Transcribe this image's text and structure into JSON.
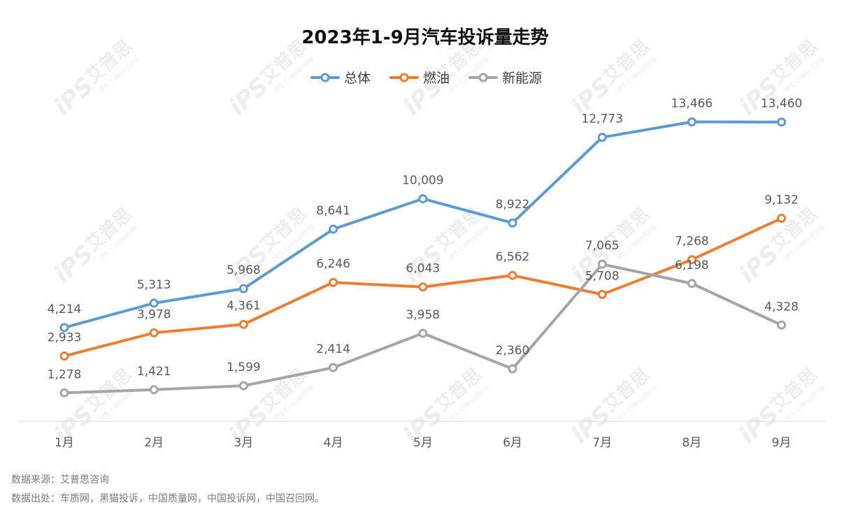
{
  "chart_data": {
    "type": "line",
    "title": "2023年1-9月汽车投诉量走势",
    "categories": [
      "1月",
      "2月",
      "3月",
      "4月",
      "5月",
      "6月",
      "7月",
      "8月",
      "9月"
    ],
    "series": [
      {
        "name": "总体",
        "color": "#5b9bd5",
        "values": [
          4214,
          5313,
          5968,
          8641,
          10009,
          8922,
          12773,
          13466,
          13460
        ],
        "labels": [
          "4,214",
          "5,313",
          "5,968",
          "8,641",
          "10,009",
          "8,922",
          "12,773",
          "13,466",
          "13,460"
        ]
      },
      {
        "name": "燃油",
        "color": "#ed7d31",
        "values": [
          2933,
          3978,
          4361,
          6246,
          6043,
          6562,
          5708,
          7268,
          9132
        ],
        "labels": [
          "2,933",
          "3,978",
          "4,361",
          "6,246",
          "6,043",
          "6,562",
          "5,708",
          "7,268",
          "9,132"
        ]
      },
      {
        "name": "新能源",
        "color": "#a5a5a5",
        "values": [
          1278,
          1421,
          1599,
          2414,
          3958,
          2360,
          7065,
          6198,
          4328
        ],
        "labels": [
          "1,278",
          "1,421",
          "1,599",
          "2,414",
          "3,958",
          "2,360",
          "7,065",
          "6,198",
          "4,328"
        ]
      }
    ],
    "legend": "top-center",
    "grid": false
  },
  "watermark": {
    "brand": "艾普思",
    "logo_text": "iPS",
    "sub_text": "IPS Consulting"
  },
  "footer": {
    "source": "数据来源：艾普思咨询",
    "origin": "数据出处：车质网，黑猫投诉，中国质量网，中国投诉网，中国召回网。"
  }
}
